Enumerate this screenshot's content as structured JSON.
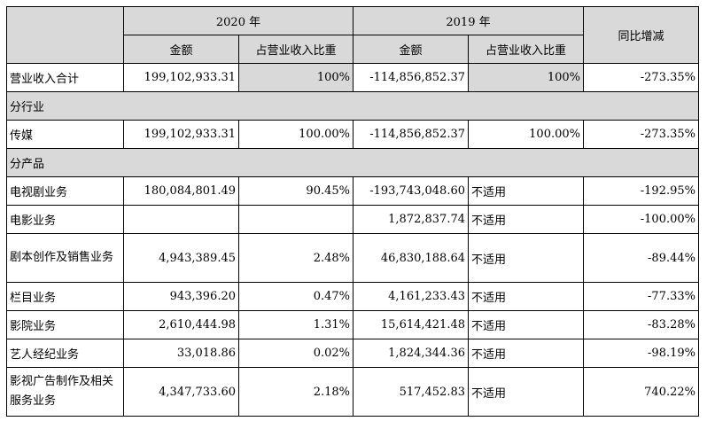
{
  "header": {
    "year_2020": "2020 年",
    "year_2019": "2019 年",
    "amount_2020": "金额",
    "ratio_2020": "占营业收入比重",
    "amount_2019": "金额",
    "ratio_2019": "占营业收入比重",
    "yoy": "同比增减"
  },
  "total_row": {
    "label": "营业收入合计",
    "amount_2020": "199,102,933.31",
    "ratio_2020": "100%",
    "amount_2019": "-114,856,852.37",
    "ratio_2019": "100%",
    "yoy": "-273.35%"
  },
  "section_industry": {
    "label": "分行业"
  },
  "industry_rows": [
    {
      "label": "传媒",
      "amount_2020": "199,102,933.31",
      "ratio_2020": "100.00%",
      "amount_2019": "-114,856,852.37",
      "ratio_2019": "100.00%",
      "yoy": "-273.35%"
    }
  ],
  "section_product": {
    "label": "分产品"
  },
  "product_rows": [
    {
      "label": "电视剧业务",
      "amount_2020": "180,084,801.49",
      "ratio_2020": "90.45%",
      "amount_2019": "-193,743,048.60",
      "ratio_2019": "不适用",
      "yoy": "-192.95%"
    },
    {
      "label": "电影业务",
      "amount_2020": "",
      "ratio_2020": "",
      "amount_2019": "1,872,837.74",
      "ratio_2019": "不适用",
      "yoy": "-100.00%"
    },
    {
      "label": "剧本创作及销售业务",
      "amount_2020": "4,943,389.45",
      "ratio_2020": "2.48%",
      "amount_2019": "46,830,188.64",
      "ratio_2019": "不适用",
      "yoy": "-89.44%"
    },
    {
      "label": "栏目业务",
      "amount_2020": "943,396.20",
      "ratio_2020": "0.47%",
      "amount_2019": "4,161,233.43",
      "ratio_2019": "不适用",
      "yoy": "-77.33%"
    },
    {
      "label": "影院业务",
      "amount_2020": "2,610,444.98",
      "ratio_2020": "1.31%",
      "amount_2019": "15,614,421.48",
      "ratio_2019": "不适用",
      "yoy": "-83.28%"
    },
    {
      "label": "艺人经纪业务",
      "amount_2020": "33,018.86",
      "ratio_2020": "0.02%",
      "amount_2019": "1,824,344.36",
      "ratio_2019": "不适用",
      "yoy": "-98.19%"
    },
    {
      "label": "影视广告制作及相关服务业务",
      "amount_2020": "4,347,733.60",
      "ratio_2020": "2.18%",
      "amount_2019": "517,452.83",
      "ratio_2019": "不适用",
      "yoy": "740.22%"
    }
  ]
}
